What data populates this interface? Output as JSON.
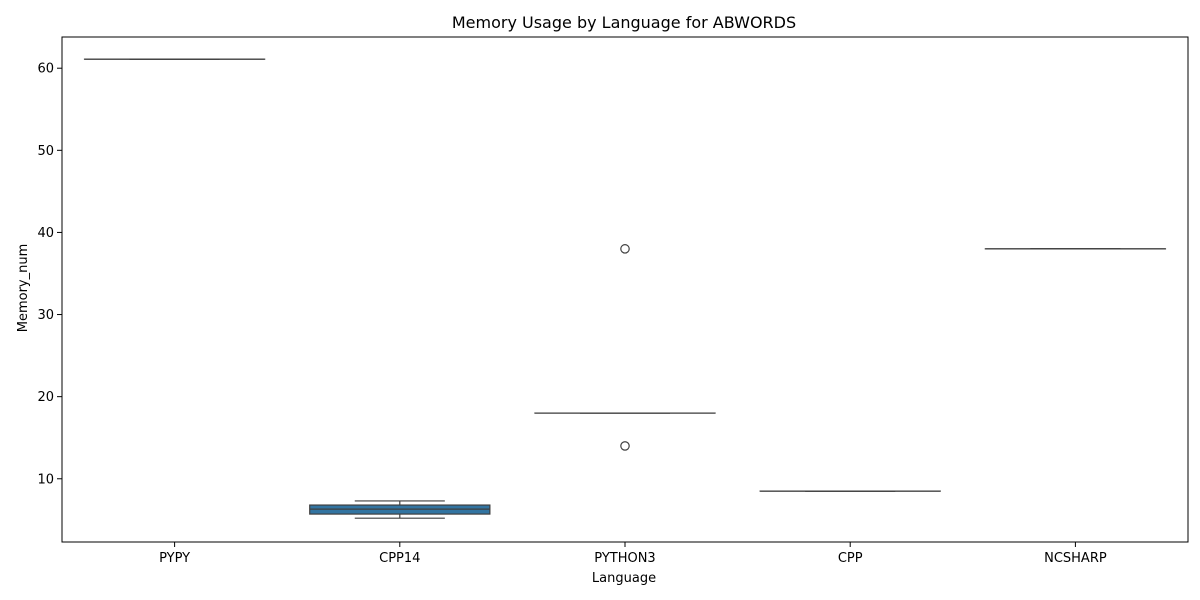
{
  "chart_data": {
    "type": "box",
    "title": "Memory Usage by Language for ABWORDS",
    "xlabel": "Language",
    "ylabel": "Memory_num",
    "ylim": [
      2.3,
      63.8
    ],
    "yticks": [
      10,
      20,
      30,
      40,
      50,
      60
    ],
    "grid": false,
    "box_color": "#3274a1",
    "line_color": "#3f3f3f",
    "categories": [
      "PYPY",
      "CPP14",
      "PYTHON3",
      "CPP",
      "NCSHARP"
    ],
    "boxes": [
      {
        "category": "PYPY",
        "whisker_low": 61.1,
        "q1": 61.1,
        "median": 61.1,
        "q3": 61.1,
        "whisker_high": 61.1,
        "outliers": []
      },
      {
        "category": "CPP14",
        "whisker_low": 5.2,
        "q1": 5.7,
        "median": 6.3,
        "q3": 6.8,
        "whisker_high": 7.3,
        "outliers": []
      },
      {
        "category": "PYTHON3",
        "whisker_low": 18.0,
        "q1": 18.0,
        "median": 18.0,
        "q3": 18.0,
        "whisker_high": 18.0,
        "outliers": [
          38.0,
          14.0
        ]
      },
      {
        "category": "CPP",
        "whisker_low": 8.5,
        "q1": 8.5,
        "median": 8.5,
        "q3": 8.5,
        "whisker_high": 8.5,
        "outliers": []
      },
      {
        "category": "NCSHARP",
        "whisker_low": 38.0,
        "q1": 38.0,
        "median": 38.0,
        "q3": 38.0,
        "whisker_high": 38.0,
        "outliers": []
      }
    ]
  }
}
